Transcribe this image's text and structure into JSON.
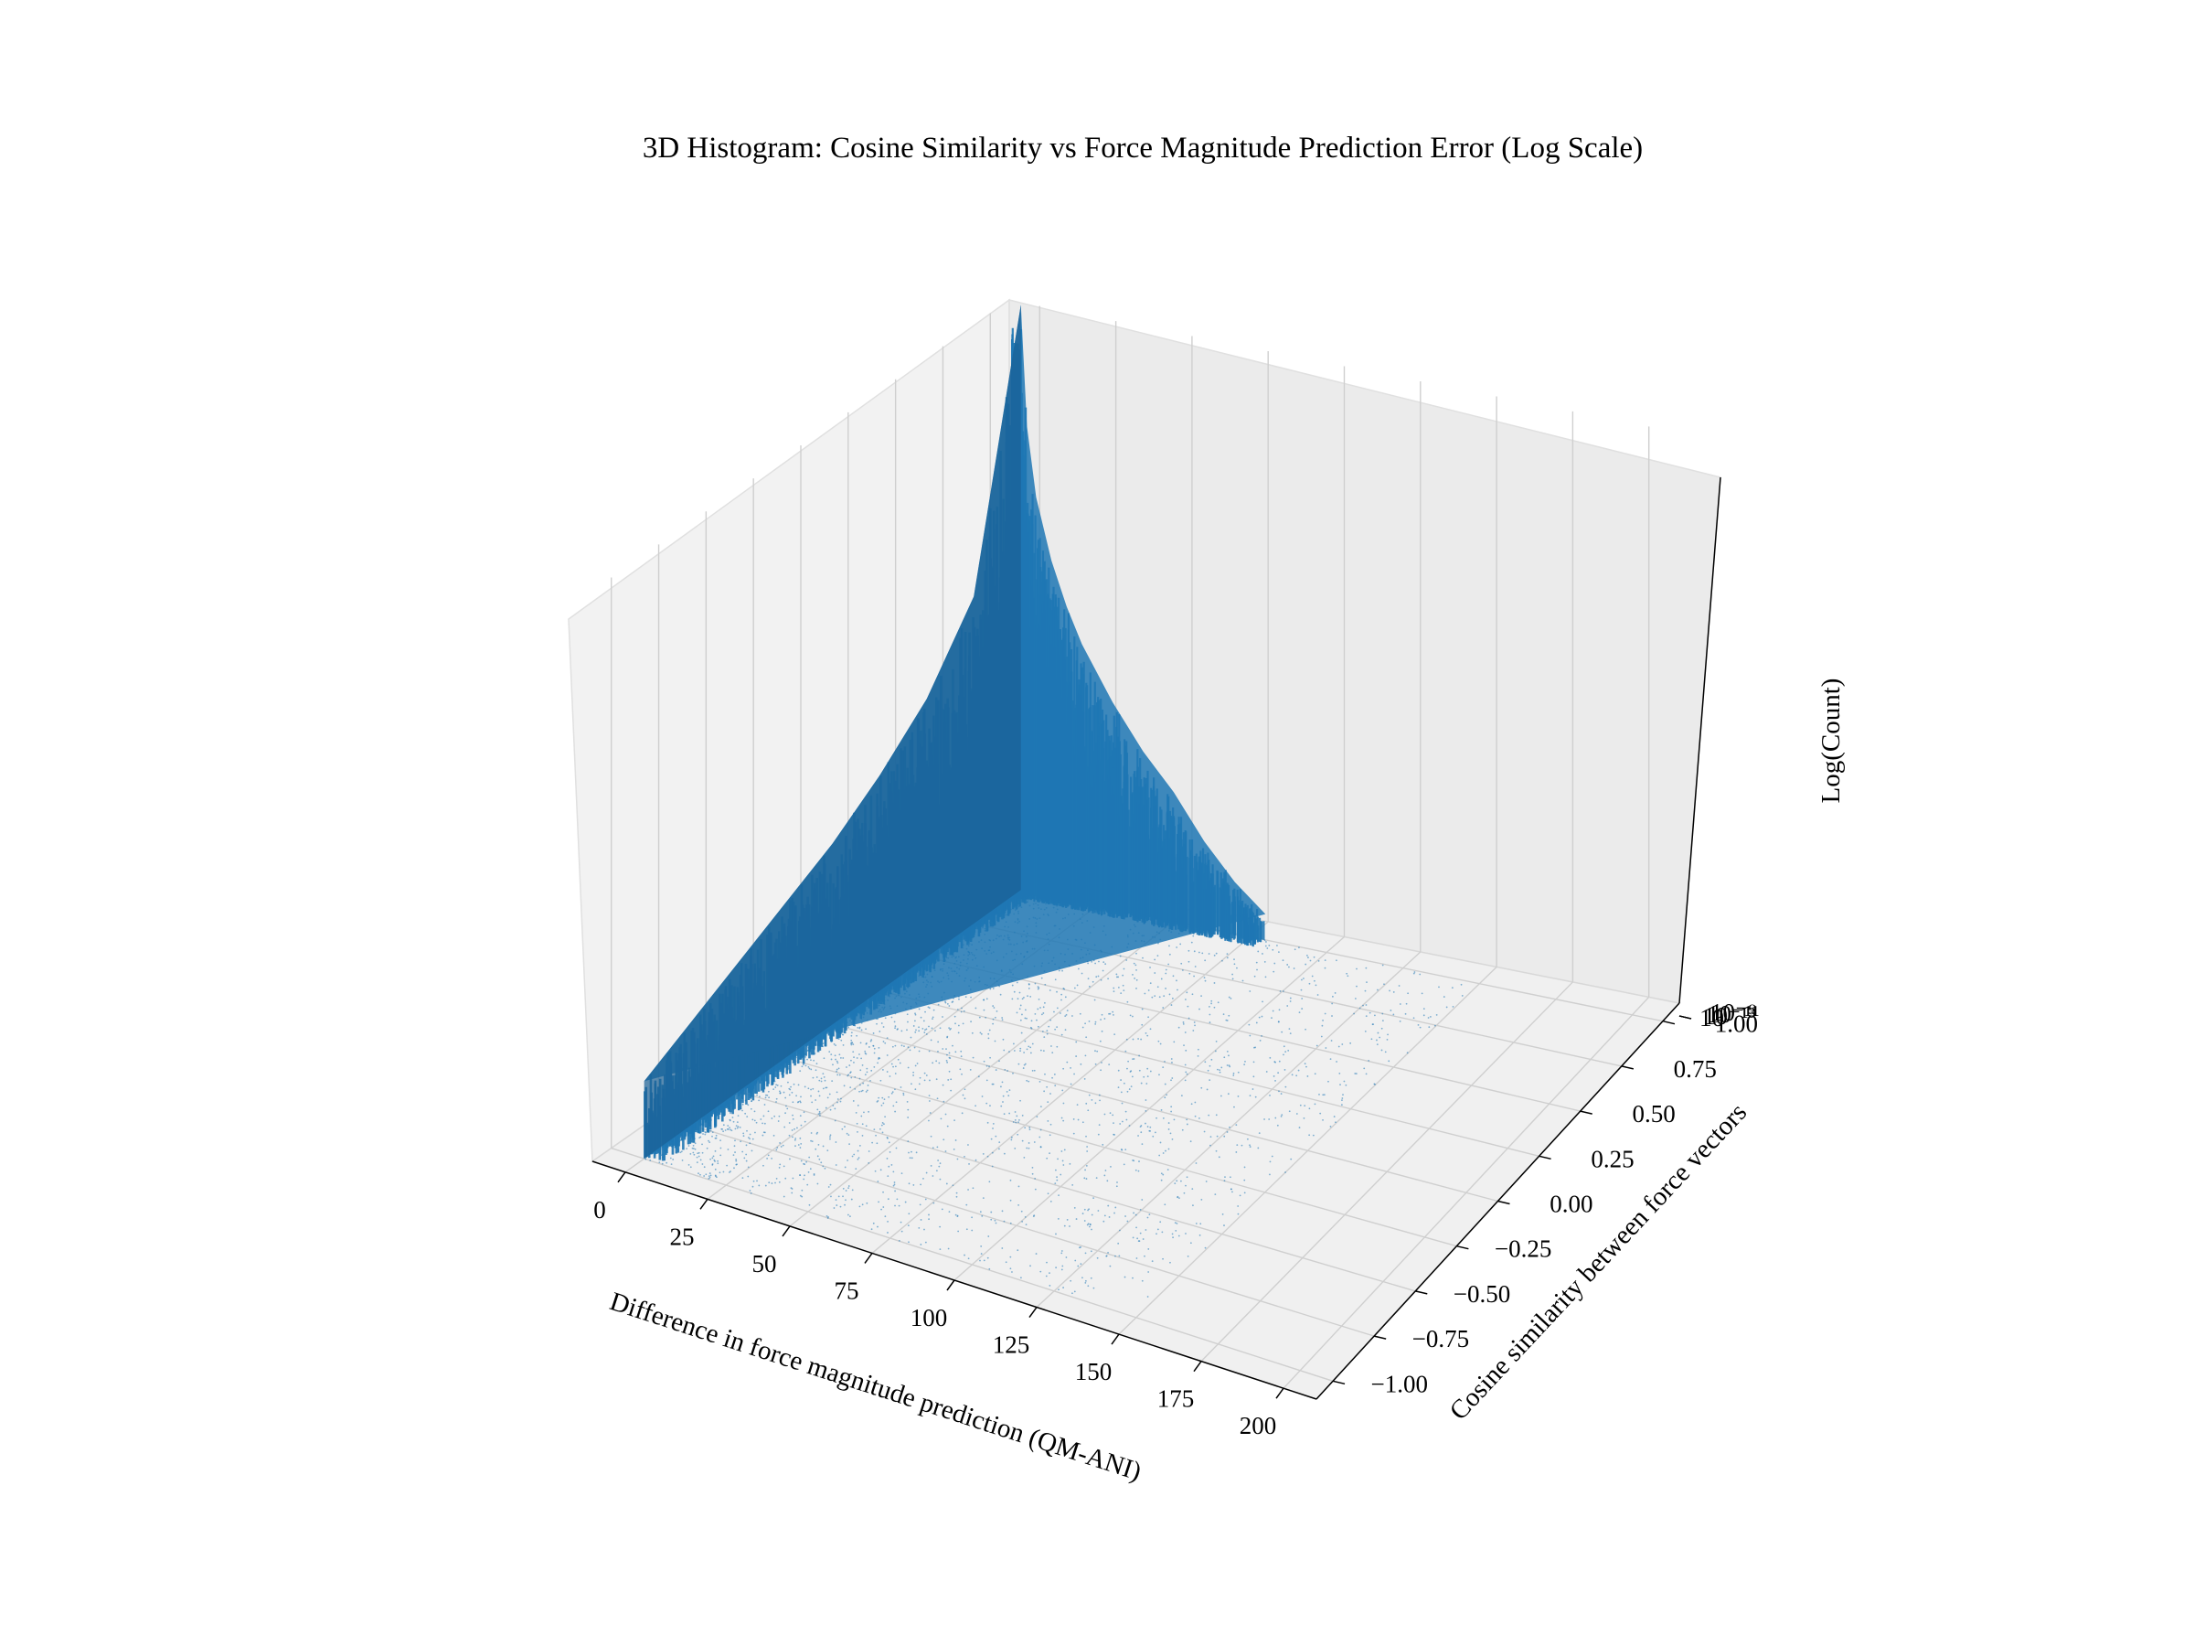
{
  "chart_data": {
    "type": "3d-bar",
    "title": "3D Histogram: Cosine Similarity vs Force Magnitude Prediction Error (Log Scale)",
    "xlabel": "Difference in force magnitude prediction (QM-ANI)",
    "ylabel": "Cosine similarity between force vectors",
    "zlabel": "Log(Count)",
    "z_scale": "log",
    "xlim": [
      -10,
      210
    ],
    "ylim": [
      -1.1,
      1.1
    ],
    "x_ticks": [
      "0",
      "25",
      "50",
      "75",
      "100",
      "125",
      "150",
      "175",
      "200"
    ],
    "y_ticks": [
      "−1.00",
      "−0.75",
      "−0.50",
      "−0.25",
      "0.00",
      "0.25",
      "0.50",
      "0.75",
      "1.00"
    ],
    "z_ticks": [
      "10",
      "10⁻¹³",
      "10⁻¹¹",
      "10⁻⁹"
    ],
    "bar_color": "#1f77b4",
    "grid": true,
    "description_of_distribution": "counts concentrate at cosine similarity 1.00 and near-zero magnitude error; peak decays with increasing magnitude error and decreasing similarity",
    "ridge_series": [
      {
        "x": 0,
        "y": 1.0,
        "log_count": 6.8
      },
      {
        "x": 2,
        "y": 1.0,
        "log_count": 5.4
      },
      {
        "x": 5,
        "y": 1.0,
        "log_count": 4.6
      },
      {
        "x": 10,
        "y": 1.0,
        "log_count": 3.9
      },
      {
        "x": 15,
        "y": 1.0,
        "log_count": 3.4
      },
      {
        "x": 20,
        "y": 1.0,
        "log_count": 3.0
      },
      {
        "x": 30,
        "y": 1.0,
        "log_count": 2.4
      },
      {
        "x": 40,
        "y": 1.0,
        "log_count": 1.9
      },
      {
        "x": 50,
        "y": 1.0,
        "log_count": 1.5
      },
      {
        "x": 60,
        "y": 1.0,
        "log_count": 1.0
      },
      {
        "x": 70,
        "y": 1.0,
        "log_count": 0.6
      },
      {
        "x": 80,
        "y": 1.0,
        "log_count": 0.3
      }
    ],
    "similarity_series": [
      {
        "x": 0,
        "y": 1.0,
        "log_count": 6.8
      },
      {
        "x": 0,
        "y": 0.75,
        "log_count": 3.8
      },
      {
        "x": 0,
        "y": 0.5,
        "log_count": 3.0
      },
      {
        "x": 0,
        "y": 0.25,
        "log_count": 2.5
      },
      {
        "x": 0,
        "y": 0.0,
        "log_count": 2.1
      },
      {
        "x": 0,
        "y": -0.25,
        "log_count": 1.8
      },
      {
        "x": 0,
        "y": -0.5,
        "log_count": 1.5
      },
      {
        "x": 0,
        "y": -0.75,
        "log_count": 1.2
      },
      {
        "x": 0,
        "y": -1.0,
        "log_count": 0.9
      }
    ]
  }
}
